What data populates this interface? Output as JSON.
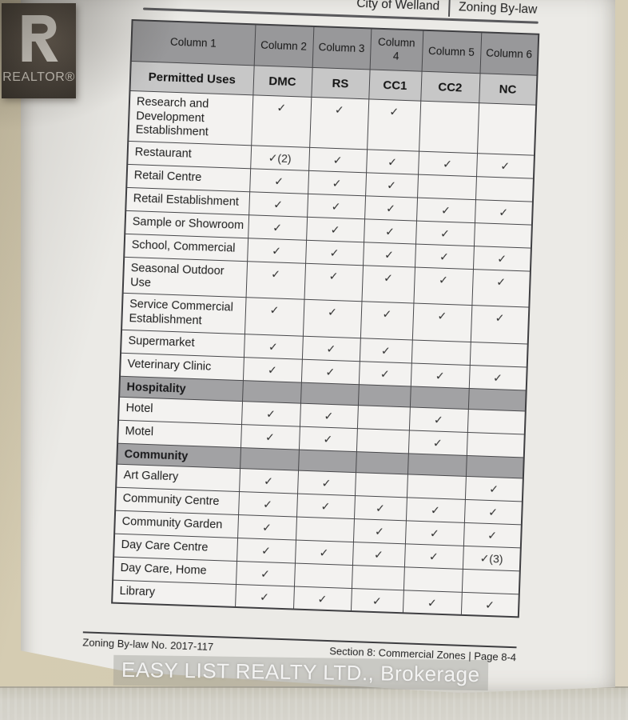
{
  "branding": {
    "realtor_logo_text": "REALTOR®"
  },
  "page_header": {
    "left": "City of Welland",
    "right": "Zoning By-law"
  },
  "table": {
    "column_headers": [
      "Column 1",
      "Column 2",
      "Column 3",
      "Column\n4",
      "Column 5",
      "Column 6"
    ],
    "zone_headers": [
      "Permitted Uses",
      "DMC",
      "RS",
      "CC1",
      "CC2",
      "NC"
    ],
    "rows": [
      {
        "section": false,
        "label": "Research and Development Establishment",
        "cells": [
          "✓",
          "✓",
          "✓",
          "",
          ""
        ]
      },
      {
        "section": false,
        "label": "Restaurant",
        "cells": [
          "✓(2)",
          "✓",
          "✓",
          "✓",
          "✓"
        ]
      },
      {
        "section": false,
        "label": "Retail Centre",
        "cells": [
          "✓",
          "✓",
          "✓",
          "",
          ""
        ]
      },
      {
        "section": false,
        "label": "Retail Establishment",
        "cells": [
          "✓",
          "✓",
          "✓",
          "✓",
          "✓"
        ]
      },
      {
        "section": false,
        "label": "Sample or Showroom",
        "cells": [
          "✓",
          "✓",
          "✓",
          "✓",
          ""
        ]
      },
      {
        "section": false,
        "label": "School, Commercial",
        "cells": [
          "✓",
          "✓",
          "✓",
          "✓",
          "✓"
        ]
      },
      {
        "section": false,
        "label": "Seasonal Outdoor Use",
        "cells": [
          "✓",
          "✓",
          "✓",
          "✓",
          "✓"
        ]
      },
      {
        "section": false,
        "label": "Service Commercial Establishment",
        "cells": [
          "✓",
          "✓",
          "✓",
          "✓",
          "✓"
        ]
      },
      {
        "section": false,
        "label": "Supermarket",
        "cells": [
          "✓",
          "✓",
          "✓",
          "",
          ""
        ]
      },
      {
        "section": false,
        "label": "Veterinary Clinic",
        "cells": [
          "✓",
          "✓",
          "✓",
          "✓",
          "✓"
        ]
      },
      {
        "section": true,
        "label": "Hospitality"
      },
      {
        "section": false,
        "label": "Hotel",
        "cells": [
          "✓",
          "✓",
          "",
          "✓",
          ""
        ]
      },
      {
        "section": false,
        "label": "Motel",
        "cells": [
          "✓",
          "✓",
          "",
          "✓",
          ""
        ]
      },
      {
        "section": true,
        "label": "Community"
      },
      {
        "section": false,
        "label": "Art Gallery",
        "cells": [
          "✓",
          "✓",
          "",
          "",
          "✓"
        ]
      },
      {
        "section": false,
        "label": "Community Centre",
        "cells": [
          "✓",
          "✓",
          "✓",
          "✓",
          "✓"
        ]
      },
      {
        "section": false,
        "label": "Community Garden",
        "cells": [
          "✓",
          "",
          "✓",
          "✓",
          "✓"
        ]
      },
      {
        "section": false,
        "label": "Day Care Centre",
        "cells": [
          "✓",
          "✓",
          "✓",
          "✓",
          "✓(3)"
        ]
      },
      {
        "section": false,
        "label": "Day Care, Home",
        "cells": [
          "✓",
          "",
          "",
          "",
          ""
        ]
      },
      {
        "section": false,
        "label": "Library",
        "cells": [
          "✓",
          "✓",
          "✓",
          "✓",
          "✓"
        ]
      }
    ]
  },
  "footer": {
    "left": "Zoning By-law No. 2017-117",
    "right": "Section 8:  Commercial Zones  |  Page 8-4"
  },
  "watermark": "EASY LIST REALTY LTD., Brokerage",
  "colors": {
    "background_surface": "#d2c9ae",
    "paper": "#efeeea",
    "column_header_gray": "#98989a",
    "zone_header_gray": "#c7c7c7",
    "section_bar_gray": "#a2a2a4",
    "ink": "#1d1d1d",
    "logo_dark": "#4a433b"
  }
}
